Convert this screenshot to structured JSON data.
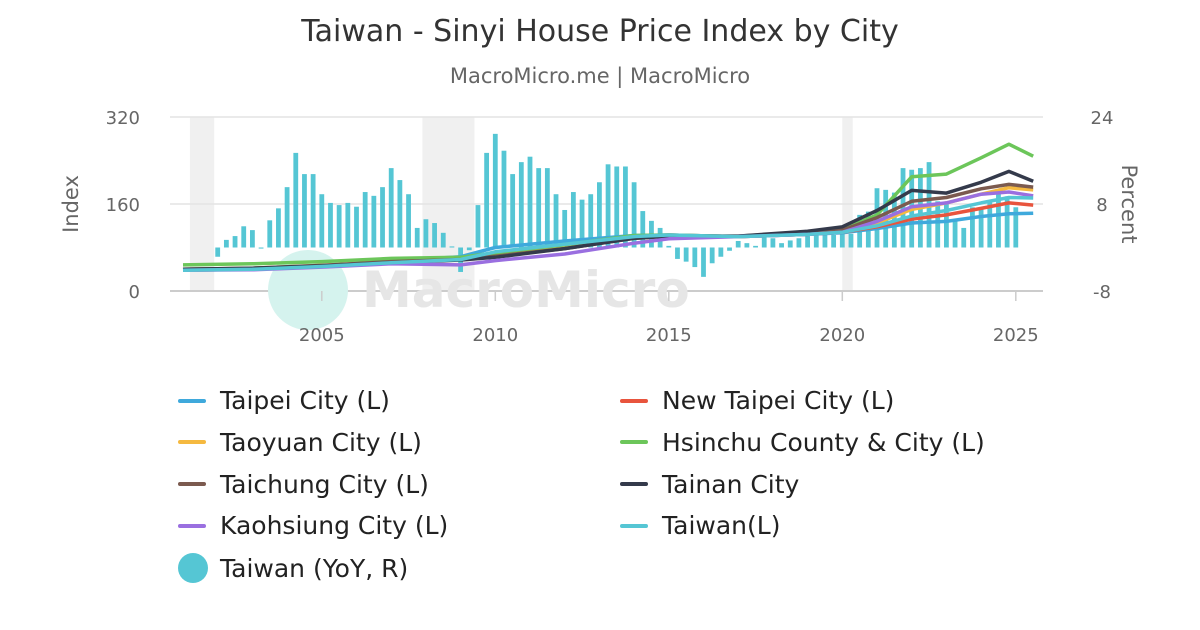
{
  "title": "Taiwan - Sinyi House Price Index by City",
  "subtitle": "MacroMicro.me | MacroMicro",
  "watermark": "MacroMicro",
  "chart_data": {
    "type": "line",
    "title": "Taiwan - Sinyi House Price Index by City",
    "ylabel_left": "Index",
    "ylabel_right": "Percent",
    "ylim_left": [
      0,
      320
    ],
    "ylim_right": [
      -8,
      24
    ],
    "yticks_left": [
      "0",
      "160",
      "320"
    ],
    "yticks_right": [
      "-8",
      "8",
      "24"
    ],
    "xlim": [
      2001,
      2025.8
    ],
    "xticks": [
      "2005",
      "2010",
      "2015",
      "2020",
      "2025"
    ],
    "grid": true,
    "legend_placement": "bottom",
    "recession_shading": [
      [
        2001.2,
        2001.9
      ],
      [
        2007.9,
        2009.4
      ],
      [
        2020.0,
        2020.3
      ]
    ],
    "line_x": [
      2001,
      2003,
      2005,
      2007,
      2009,
      2010,
      2012,
      2014,
      2015,
      2017,
      2019,
      2020,
      2021,
      2022,
      2023,
      2024,
      2024.8,
      2025.5
    ],
    "series": [
      {
        "name": "Taipei City (L)",
        "color": "#3fa9dc",
        "axis": "left",
        "values": [
          40,
          41,
          46,
          55,
          63,
          80,
          92,
          102,
          103,
          100,
          104,
          107,
          115,
          125,
          128,
          137,
          142,
          143
        ]
      },
      {
        "name": "New Taipei City (L)",
        "color": "#e8543d",
        "axis": "left",
        "values": [
          38,
          40,
          45,
          52,
          58,
          70,
          85,
          100,
          103,
          100,
          104,
          108,
          118,
          132,
          140,
          152,
          162,
          158
        ]
      },
      {
        "name": "Taoyuan City (L)",
        "color": "#f5b940",
        "axis": "left",
        "values": [
          40,
          42,
          47,
          53,
          58,
          65,
          80,
          97,
          101,
          100,
          105,
          110,
          125,
          150,
          162,
          178,
          190,
          186
        ]
      },
      {
        "name": "Hsinchu County & City (L)",
        "color": "#6cc65a",
        "axis": "left",
        "values": [
          48,
          50,
          54,
          60,
          62,
          70,
          85,
          102,
          103,
          100,
          106,
          112,
          140,
          210,
          215,
          245,
          270,
          248
        ]
      },
      {
        "name": "Taichung City (L)",
        "color": "#7b5a4f",
        "axis": "left",
        "values": [
          40,
          42,
          47,
          54,
          58,
          64,
          78,
          97,
          101,
          101,
          108,
          112,
          135,
          165,
          172,
          188,
          196,
          191
        ]
      },
      {
        "name": "Tainan City",
        "color": "#343a4b",
        "axis": "left",
        "values": [
          40,
          42,
          46,
          52,
          57,
          62,
          78,
          97,
          101,
          101,
          110,
          118,
          148,
          185,
          180,
          200,
          220,
          202
        ]
      },
      {
        "name": "Kaohsiung City (L)",
        "color": "#9a6fe0",
        "axis": "left",
        "values": [
          38,
          39,
          44,
          50,
          48,
          56,
          68,
          88,
          96,
          100,
          104,
          108,
          128,
          155,
          162,
          178,
          182,
          175
        ]
      },
      {
        "name": "Taiwan(L)",
        "color": "#55c6d4",
        "axis": "left",
        "values": [
          38,
          40,
          45,
          52,
          58,
          72,
          86,
          100,
          103,
          100,
          104,
          108,
          120,
          138,
          148,
          162,
          172,
          171
        ]
      }
    ],
    "bars": {
      "name": "Taiwan (YoY, R)",
      "color": "#55c6d4",
      "axis": "right",
      "start": "2002Q1",
      "frequency": "quarterly",
      "values": [
        -1.7,
        1.4,
        2.1,
        3.9,
        3.2,
        -0.2,
        5.0,
        7.2,
        11.1,
        17.4,
        13.5,
        13.5,
        9.8,
        8.2,
        7.8,
        8.2,
        7.5,
        10.2,
        9.5,
        11.1,
        14.6,
        12.4,
        9.8,
        3.6,
        5.2,
        4.5,
        2.7,
        0.2,
        -4.5,
        -0.5,
        7.8,
        17.4,
        20.9,
        17.8,
        13.5,
        15.7,
        16.7,
        14.6,
        14.6,
        9.8,
        6.9,
        10.2,
        8.8,
        9.8,
        12.0,
        15.3,
        14.9,
        14.9,
        12.0,
        6.7,
        4.9,
        3.6,
        0.3,
        -2.1,
        -2.6,
        -3.6,
        -5.4,
        -2.9,
        -1.7,
        -0.6,
        1.2,
        0.8,
        0.3,
        1.9,
        1.7,
        0.8,
        1.3,
        1.7,
        2.1,
        2.6,
        2.3,
        2.3,
        2.5,
        2.5,
        6.0,
        6.6,
        10.9,
        10.6,
        10.1,
        14.6,
        14.3,
        14.6,
        15.7,
        8.5,
        8.0,
        5.0,
        3.6,
        7.4,
        7.4,
        8.7,
        10.2,
        9.4,
        7.4
      ]
    }
  }
}
